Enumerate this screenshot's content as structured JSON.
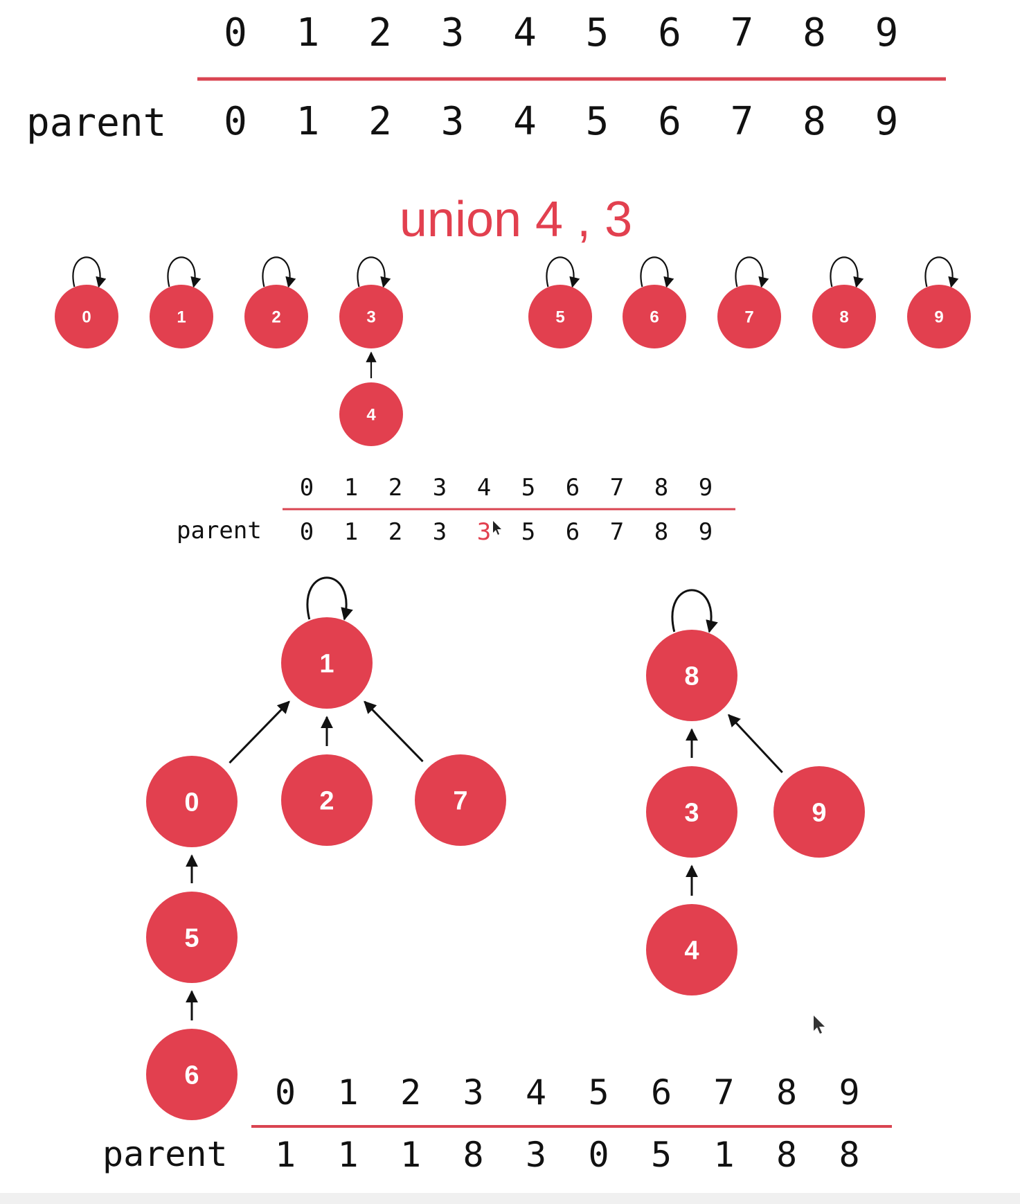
{
  "node_color": "#e2404f",
  "highlight_color": "#e2404f",
  "rule_color": "#d94451",
  "parent_label": "parent",
  "top_table": {
    "indices": [
      "0",
      "1",
      "2",
      "3",
      "4",
      "5",
      "6",
      "7",
      "8",
      "9"
    ],
    "parents": [
      "0",
      "1",
      "2",
      "3",
      "4",
      "5",
      "6",
      "7",
      "8",
      "9"
    ]
  },
  "union_title": "union 4 , 3",
  "middle_table": {
    "indices": [
      "0",
      "1",
      "2",
      "3",
      "4",
      "5",
      "6",
      "7",
      "8",
      "9"
    ],
    "parents": [
      "0",
      "1",
      "2",
      "3",
      "3",
      "5",
      "6",
      "7",
      "8",
      "9"
    ],
    "highlight_index": 4
  },
  "bottom_table": {
    "indices": [
      "0",
      "1",
      "2",
      "3",
      "4",
      "5",
      "6",
      "7",
      "8",
      "9"
    ],
    "parents": [
      "1",
      "1",
      "1",
      "8",
      "3",
      "0",
      "5",
      "1",
      "8",
      "8"
    ]
  },
  "forest_small": {
    "nodes": [
      "0",
      "1",
      "2",
      "3",
      "4",
      "5",
      "6",
      "7",
      "8",
      "9"
    ],
    "edges": [
      {
        "from": "4",
        "to": "3"
      }
    ],
    "self_loops": [
      "0",
      "1",
      "2",
      "3",
      "5",
      "6",
      "7",
      "8",
      "9"
    ]
  },
  "forest_large": {
    "nodes": [
      "0",
      "1",
      "2",
      "3",
      "4",
      "5",
      "6",
      "7",
      "8",
      "9"
    ],
    "edges": [
      {
        "from": "0",
        "to": "1"
      },
      {
        "from": "2",
        "to": "1"
      },
      {
        "from": "7",
        "to": "1"
      },
      {
        "from": "5",
        "to": "0"
      },
      {
        "from": "6",
        "to": "5"
      },
      {
        "from": "3",
        "to": "8"
      },
      {
        "from": "9",
        "to": "8"
      },
      {
        "from": "4",
        "to": "3"
      }
    ],
    "self_loops": [
      "1",
      "8"
    ]
  }
}
